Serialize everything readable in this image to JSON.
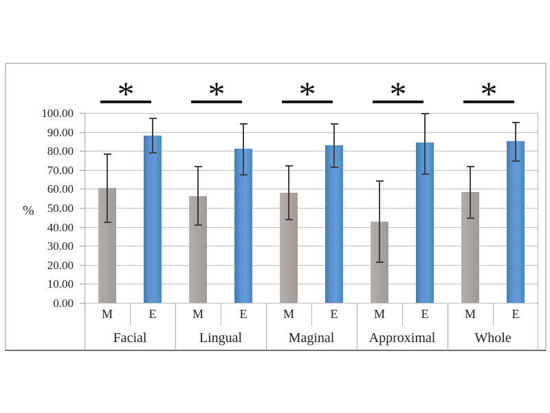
{
  "chart_data": {
    "type": "bar",
    "title": "",
    "ylabel": "%",
    "xlabel": "",
    "ylim": [
      0,
      100
    ],
    "ytick_step": 10,
    "ytick_labels": [
      "0.00",
      "10.00",
      "20.00",
      "30.00",
      "40.00",
      "50.00",
      "60.00",
      "70.00",
      "80.00",
      "90.00",
      "100.00"
    ],
    "categories": [
      "Facial",
      "Lingual",
      "Maginal",
      "Approximal",
      "Whole"
    ],
    "sub_categories": [
      "M",
      "E"
    ],
    "series": [
      {
        "name": "M",
        "color": "#aaa5a2",
        "values": [
          60.6,
          56.3,
          58.1,
          42.9,
          58.3
        ],
        "error_low": [
          42.3,
          40.9,
          44.0,
          21.3,
          44.7
        ],
        "error_high": [
          78.8,
          72.1,
          72.4,
          64.4,
          72.1
        ]
      },
      {
        "name": "E",
        "color": "#5892cf",
        "values": [
          88.2,
          81.0,
          82.9,
          84.5,
          85.0
        ],
        "error_low": [
          79.0,
          67.5,
          71.2,
          67.6,
          74.8
        ],
        "error_high": [
          97.6,
          94.6,
          94.6,
          100.0,
          95.4
        ]
      }
    ],
    "significance_marker": "*",
    "significant_groups": [
      true,
      true,
      true,
      true,
      true
    ],
    "legend": "none",
    "grid": "horizontal",
    "colors": {
      "bar_m": "#aaa5a2",
      "bar_e": "#5892cf",
      "gridline": "#bdbdbd",
      "error_bar": "#3e3e3e",
      "significance": "#141414",
      "chart_border": "#c6c6c6"
    }
  }
}
